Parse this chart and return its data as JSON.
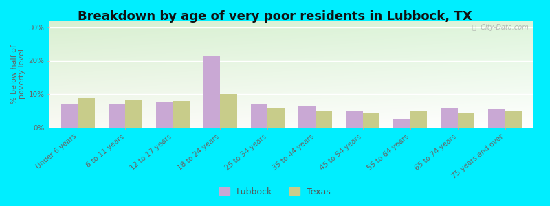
{
  "title": "Breakdown by age of very poor residents in Lubbock, TX",
  "ylabel": "% below half of\npoverty level",
  "categories": [
    "Under 6 years",
    "6 to 11 years",
    "12 to 17 years",
    "18 to 24 years",
    "25 to 34 years",
    "35 to 44 years",
    "45 to 54 years",
    "55 to 64 years",
    "65 to 74 years",
    "75 years and over"
  ],
  "lubbock_values": [
    7.0,
    7.0,
    7.5,
    21.5,
    7.0,
    6.5,
    5.0,
    2.5,
    6.0,
    5.5
  ],
  "texas_values": [
    9.0,
    8.5,
    8.0,
    10.0,
    6.0,
    5.0,
    4.5,
    5.0,
    4.5,
    5.0
  ],
  "lubbock_color": "#c9a8d4",
  "texas_color": "#c8cc8a",
  "background_outer": "#00eeff",
  "ylim": [
    0,
    32
  ],
  "yticks": [
    0,
    10,
    20,
    30
  ],
  "ytick_labels": [
    "0%",
    "10%",
    "20%",
    "30%"
  ],
  "title_fontsize": 13,
  "axis_label_fontsize": 8,
  "tick_fontsize": 7.5,
  "bar_width": 0.35,
  "legend_labels": [
    "Lubbock",
    "Texas"
  ],
  "watermark": "ⓘ  City-Data.com"
}
